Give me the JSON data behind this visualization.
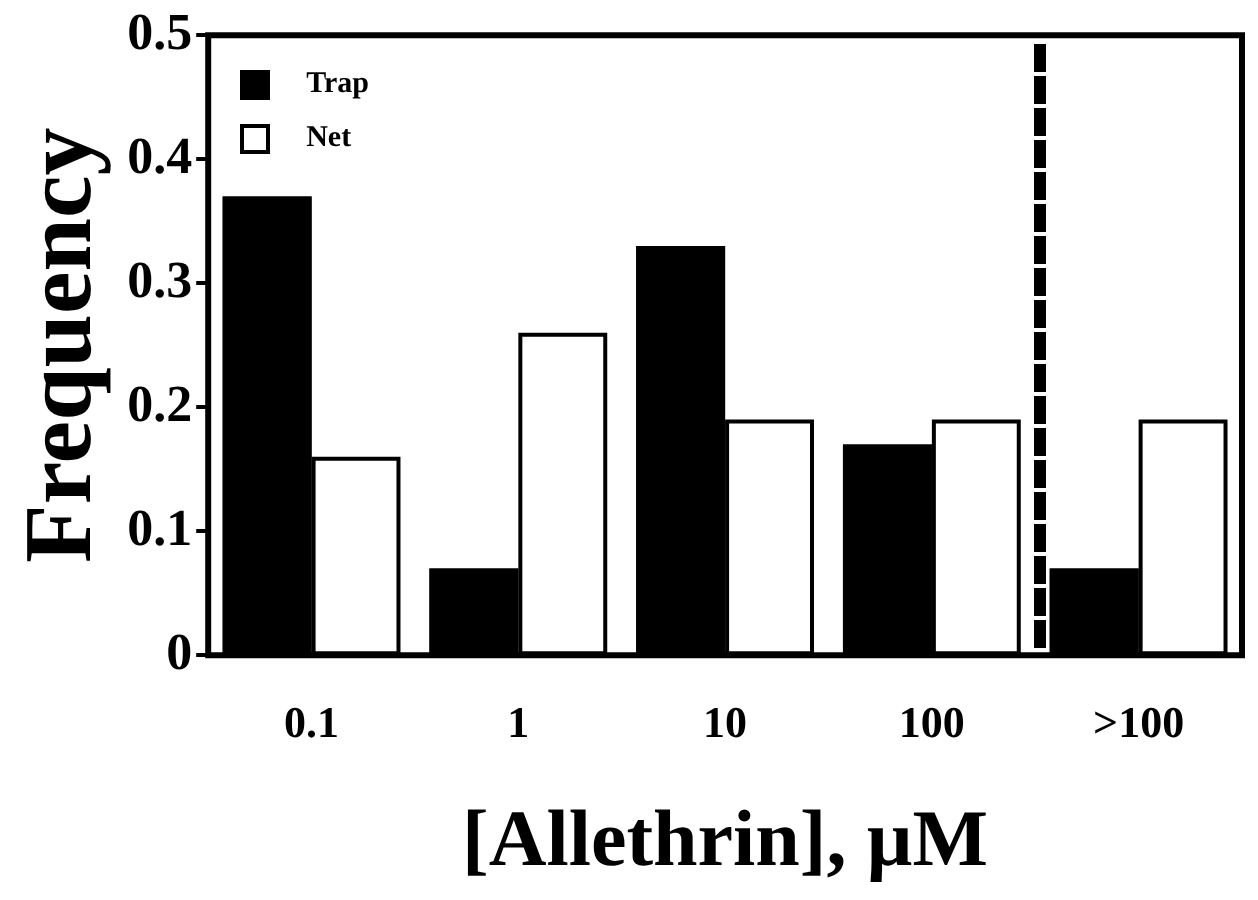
{
  "chart_data": {
    "type": "bar",
    "xlabel": "[Allethrin], µM",
    "ylabel": "Frequency",
    "categories": [
      "0.1",
      "1",
      "10",
      "100",
      ">100"
    ],
    "series": [
      {
        "name": "Trap",
        "color": "#000000",
        "values": [
          0.37,
          0.07,
          0.33,
          0.17,
          0.07
        ]
      },
      {
        "name": "Net",
        "color": "#ffffff",
        "values": [
          0.16,
          0.26,
          0.19,
          0.19,
          0.19
        ]
      }
    ],
    "ylim": [
      0,
      0.5
    ],
    "yticks": [
      0,
      0.1,
      0.2,
      0.3,
      0.4,
      0.5
    ],
    "grid": false,
    "legend": "top left"
  }
}
